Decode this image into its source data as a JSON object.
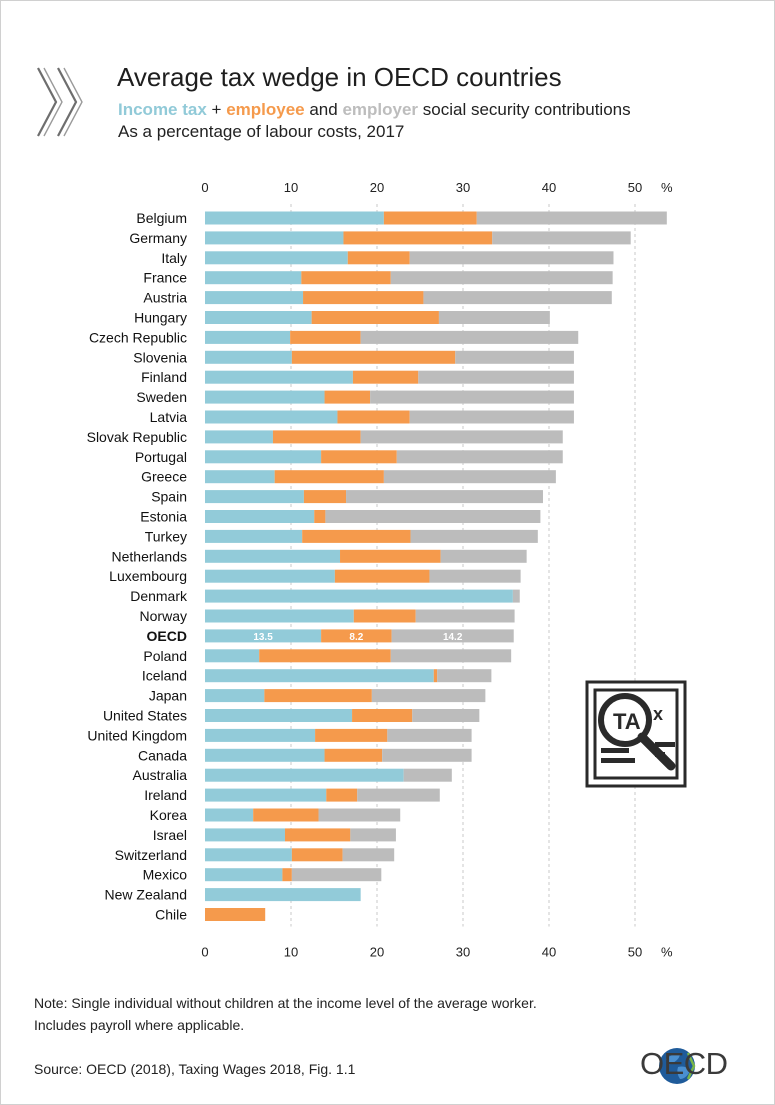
{
  "header": {
    "title": "Average tax wedge in OECD countries",
    "subtitle_income": "Income tax",
    "subtitle_plus": " + ",
    "subtitle_employee": "employee",
    "subtitle_and": " and ",
    "subtitle_employer": "employer",
    "subtitle_rest": " social security contributions",
    "subtitle2": "As a percentage of labour costs, 2017"
  },
  "footer": {
    "note_line1": "Note: Single individual without children at the income level of the average worker.",
    "note_line2": "Includes payroll where applicable.",
    "source": "Source: OECD (2018), Taxing Wages 2018, Fig. 1.1",
    "logo_text": "OECD"
  },
  "icons": {
    "decor": "chevrons-icon",
    "tax": "tax-magnifier-icon",
    "logo": "oecd-globe-icon"
  },
  "colors": {
    "income": "#92cbd9",
    "employee": "#f59a4c",
    "employer": "#bcbcbc",
    "grid": "#c8c8c8",
    "text": "#222222"
  },
  "chart_data": {
    "type": "bar",
    "orientation": "horizontal",
    "stacked": true,
    "xlabel_unit": "%",
    "xlim": [
      0,
      55
    ],
    "xticks": [
      0,
      10,
      20,
      30,
      40,
      50
    ],
    "grid": true,
    "highlight": "OECD",
    "highlight_labels": [
      "13.5",
      "8.2",
      "14.2"
    ],
    "categories": [
      "Belgium",
      "Germany",
      "Italy",
      "France",
      "Austria",
      "Hungary",
      "Czech Republic",
      "Slovenia",
      "Finland",
      "Sweden",
      "Latvia",
      "Slovak Republic",
      "Portugal",
      "Greece",
      "Spain",
      "Estonia",
      "Turkey",
      "Netherlands",
      "Luxembourg",
      "Denmark",
      "Norway",
      "OECD",
      "Poland",
      "Iceland",
      "Japan",
      "United States",
      "United Kingdom",
      "Canada",
      "Australia",
      "Ireland",
      "Korea",
      "Israel",
      "Switzerland",
      "Mexico",
      "New Zealand",
      "Chile"
    ],
    "series": [
      {
        "name": "Income tax",
        "values": [
          20.8,
          16.1,
          16.6,
          11.2,
          11.4,
          12.4,
          9.9,
          10.1,
          17.2,
          13.9,
          15.4,
          7.9,
          13.5,
          8.1,
          11.5,
          12.7,
          11.3,
          15.7,
          15.1,
          35.8,
          17.3,
          13.5,
          6.3,
          26.6,
          6.9,
          17.1,
          12.8,
          13.9,
          23.1,
          14.1,
          5.6,
          9.3,
          10.1,
          9.0,
          18.1,
          0.0
        ]
      },
      {
        "name": "Employee social security contributions",
        "values": [
          10.8,
          17.3,
          7.2,
          10.4,
          14.0,
          14.8,
          8.2,
          19.0,
          7.6,
          5.3,
          8.4,
          10.2,
          8.8,
          12.7,
          4.9,
          1.3,
          12.6,
          11.7,
          11.0,
          0.0,
          7.2,
          8.2,
          15.3,
          0.4,
          12.5,
          7.0,
          8.4,
          6.7,
          0.0,
          3.6,
          7.6,
          7.6,
          5.9,
          1.1,
          0.0,
          7.0
        ]
      },
      {
        "name": "Employer social security contributions",
        "values": [
          22.1,
          16.1,
          23.7,
          25.8,
          21.9,
          12.9,
          25.3,
          13.8,
          18.1,
          23.7,
          19.1,
          23.5,
          19.3,
          20.0,
          22.9,
          25.0,
          14.8,
          10.0,
          10.6,
          0.8,
          11.5,
          14.2,
          14.0,
          6.3,
          13.2,
          7.8,
          9.8,
          10.4,
          5.6,
          9.6,
          9.5,
          5.3,
          6.0,
          10.4,
          0.0,
          0.0
        ]
      }
    ]
  }
}
